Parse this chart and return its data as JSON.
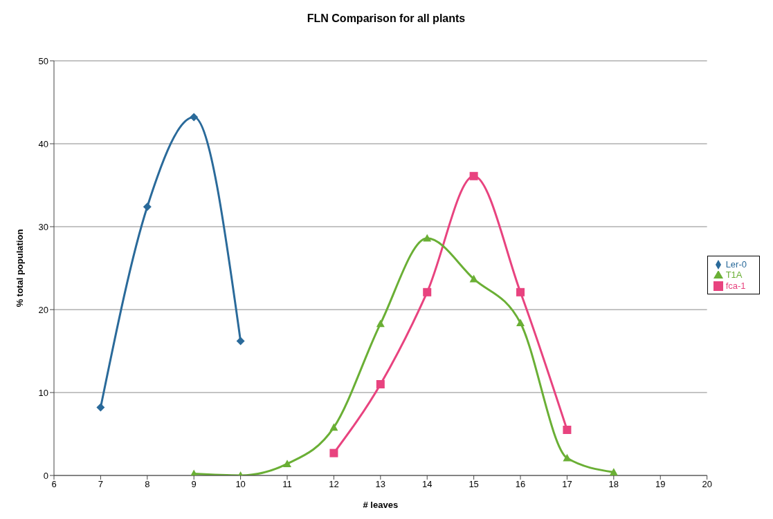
{
  "chart_data": {
    "type": "line",
    "title": "FLN Comparison for all plants",
    "xlabel": "# leaves",
    "ylabel": "% total population",
    "xlim": [
      6,
      20
    ],
    "xticks": [
      6,
      7,
      8,
      9,
      10,
      11,
      12,
      13,
      14,
      15,
      16,
      17,
      18,
      19,
      20
    ],
    "ylim": [
      0,
      50
    ],
    "yticks": [
      0,
      10,
      20,
      30,
      40,
      50
    ],
    "grid": "y",
    "legend": "right",
    "line_style": "solid",
    "series": [
      {
        "name": "Ler-0",
        "color": "#2a6a9a",
        "marker": "diamond",
        "x": [
          7,
          8,
          9,
          10
        ],
        "values": [
          8.2,
          32.4,
          43.2,
          16.2
        ]
      },
      {
        "name": "fca-1",
        "color": "#e8437f",
        "marker": "square",
        "x": [
          12,
          13,
          14,
          15,
          16,
          17
        ],
        "values": [
          2.7,
          11.0,
          22.1,
          36.1,
          22.1,
          5.5
        ]
      },
      {
        "name": "T1A",
        "color": "#6aaf35",
        "marker": "triangle",
        "x": [
          9,
          10,
          11,
          12,
          13,
          14,
          15,
          16,
          17,
          18
        ],
        "values": [
          0.2,
          0,
          1.4,
          5.8,
          18.3,
          28.6,
          23.7,
          18.4,
          2.1,
          0.4
        ]
      }
    ]
  }
}
